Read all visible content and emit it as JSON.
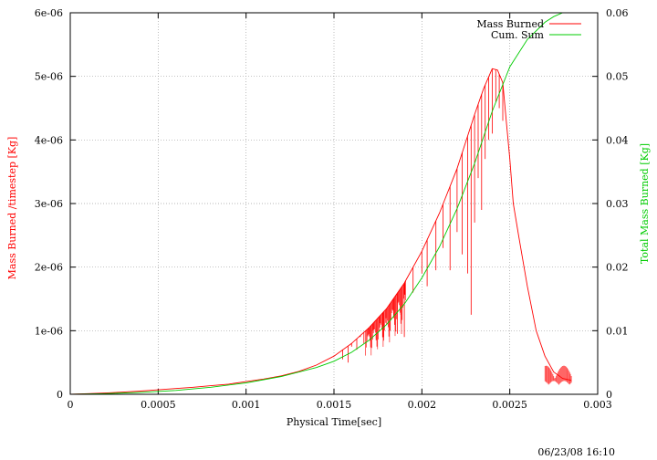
{
  "timestamp": "06/23/08 16:10",
  "chart_data": {
    "type": "line",
    "xlabel": "Physical Time[sec]",
    "ylabel": "Mass Burned /timestep [Kg]",
    "y2label": "Total Mass Burned [Kg]",
    "xlim": [
      0,
      0.003
    ],
    "ylim": [
      0,
      6e-06
    ],
    "y2lim": [
      0,
      0.06
    ],
    "grid": true,
    "legend_position": "top-right",
    "x_ticks": [
      "0",
      "0.0005",
      "0.001",
      "0.0015",
      "0.002",
      "0.0025",
      "0.003"
    ],
    "y_ticks": [
      "0",
      "1e-06",
      "2e-06",
      "3e-06",
      "4e-06",
      "5e-06",
      "6e-06"
    ],
    "y2_ticks": [
      "0",
      "0.01",
      "0.02",
      "0.03",
      "0.04",
      "0.05",
      "0.06"
    ],
    "colors": {
      "mass_burned": "#ff0000",
      "cum_sum": "#00cc00",
      "grid": "#a0a0a0",
      "ylabel": "#ff0000",
      "y2label": "#00cc00"
    },
    "series": [
      {
        "name": "Mass Burned",
        "axis": "y",
        "color": "#ff0000",
        "envelope": {
          "x": [
            0,
            0.0001,
            0.0002,
            0.0003,
            0.0004,
            0.0005,
            0.0006,
            0.0007,
            0.0008,
            0.0009,
            0.001,
            0.0011,
            0.0012,
            0.0013,
            0.0014,
            0.0015,
            0.0016,
            0.0017,
            0.0018,
            0.0019,
            0.002,
            0.0021,
            0.0022,
            0.0023,
            0.00235,
            0.0024,
            0.00243,
            0.00246,
            0.00248,
            0.0025,
            0.00252,
            0.00255,
            0.0026,
            0.00265,
            0.0027,
            0.00275,
            0.0028,
            0.00285
          ],
          "y": [
            0,
            1e-08,
            2e-08,
            3.5e-08,
            5e-08,
            7e-08,
            9e-08,
            1.1e-07,
            1.35e-07,
            1.6e-07,
            2e-07,
            2.4e-07,
            2.9e-07,
            3.6e-07,
            4.6e-07,
            6e-07,
            8e-07,
            1.05e-06,
            1.35e-06,
            1.75e-06,
            2.25e-06,
            2.85e-06,
            3.55e-06,
            4.4e-06,
            4.8e-06,
            5.12e-06,
            5.1e-06,
            4.9e-06,
            4.3e-06,
            3.7e-06,
            3e-06,
            2.5e-06,
            1.7e-06,
            1e-06,
            6e-07,
            3.5e-07,
            2.5e-07,
            2.2e-07
          ]
        },
        "spikes": [
          [
            0.00155,
            5.5e-07
          ],
          [
            0.00158,
            5e-07
          ],
          [
            0.0016,
            7.5e-07
          ],
          [
            0.00163,
            7e-07
          ],
          [
            0.00165,
            9e-07
          ],
          [
            0.00167,
            8e-07
          ],
          [
            0.0017,
            9.5e-07
          ],
          [
            0.00172,
            1e-06
          ],
          [
            0.00174,
            8.5e-07
          ],
          [
            0.00176,
            1.05e-06
          ],
          [
            0.00178,
            9e-07
          ],
          [
            0.0018,
            1.1e-06
          ],
          [
            0.00182,
            1e-06
          ],
          [
            0.00184,
            1.2e-06
          ],
          [
            0.00186,
            9.5e-07
          ],
          [
            0.00188,
            1.25e-06
          ],
          [
            0.0019,
            9e-07
          ],
          [
            0.00195,
            1.6e-06
          ],
          [
            0.002,
            1.9e-06
          ],
          [
            0.00203,
            1.7e-06
          ],
          [
            0.00208,
            1.95e-06
          ],
          [
            0.00212,
            2.3e-06
          ],
          [
            0.00216,
            1.95e-06
          ],
          [
            0.0022,
            2.55e-06
          ],
          [
            0.00223,
            2.2e-06
          ],
          [
            0.00226,
            1.9e-06
          ],
          [
            0.00228,
            1.25e-06
          ],
          [
            0.0023,
            2.7e-06
          ],
          [
            0.00232,
            3.4e-06
          ],
          [
            0.00234,
            2.9e-06
          ],
          [
            0.00236,
            3.7e-06
          ],
          [
            0.00238,
            4e-06
          ],
          [
            0.0024,
            4.1e-06
          ],
          [
            0.00242,
            4.6e-06
          ],
          [
            0.00244,
            4.5e-06
          ],
          [
            0.00246,
            4.3e-06
          ]
        ],
        "tail_noise": [
          [
            0.0027,
            0.00285,
            1.5e-07,
            4.5e-07
          ]
        ]
      },
      {
        "name": "Cum. Sum",
        "axis": "y2",
        "color": "#00cc00",
        "x": [
          0,
          0.0002,
          0.0004,
          0.0006,
          0.0008,
          0.001,
          0.0012,
          0.0014,
          0.0015,
          0.0016,
          0.0017,
          0.0018,
          0.0019,
          0.002,
          0.0021,
          0.0022,
          0.0023,
          0.0024,
          0.0025,
          0.0026,
          0.0027,
          0.00275,
          0.0028,
          0.00285
        ],
        "y": [
          0,
          0.0001,
          0.0003,
          0.0006,
          0.0011,
          0.0018,
          0.0028,
          0.0042,
          0.0052,
          0.0066,
          0.0085,
          0.011,
          0.0142,
          0.0183,
          0.0232,
          0.0292,
          0.0363,
          0.0445,
          0.0515,
          0.0558,
          0.0585,
          0.0594,
          0.06,
          0.0604
        ]
      }
    ]
  }
}
